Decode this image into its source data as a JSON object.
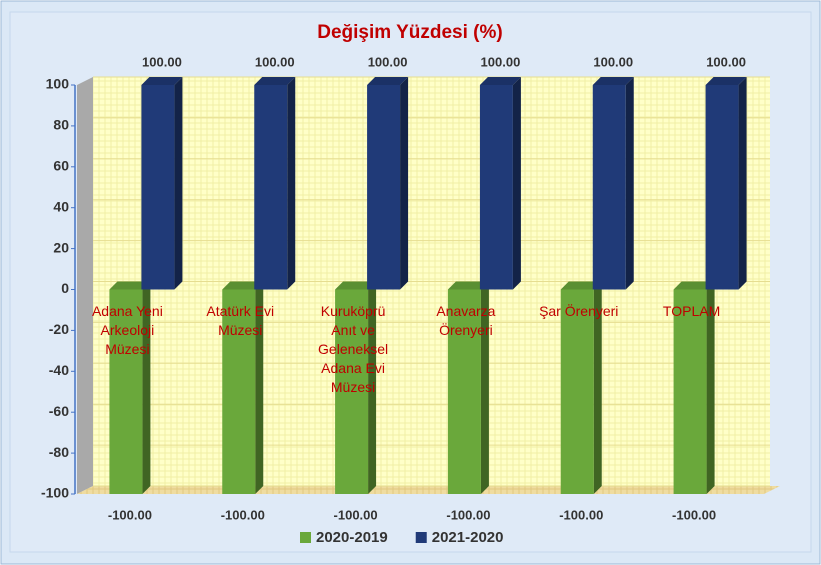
{
  "chart_data": {
    "type": "bar",
    "title": "Değişim Yüzdesi (%)",
    "categories": [
      "Adana Yeni Arkeoloji Müzesi",
      "Atatürk Evi Müzesi",
      "Kuruköprü Anıt ve Geleneksel Adana Evi Müzesi",
      "Anavarza Örenyeri",
      "Şar Örenyeri",
      "TOPLAM"
    ],
    "series": [
      {
        "name": "2020-2019",
        "color": "#6aa83b",
        "values": [
          -100,
          -100,
          -100,
          -100,
          -100,
          -100
        ],
        "value_labels": [
          "-100.00",
          "-100.00",
          "-100.00",
          "-100.00",
          "-100.00",
          "-100.00"
        ]
      },
      {
        "name": "2021-2020",
        "color": "#203a78",
        "values": [
          100,
          100,
          100,
          100,
          100,
          100
        ],
        "value_labels": [
          "100.00",
          "100.00",
          "100.00",
          "100.00",
          "100.00",
          "100.00"
        ]
      }
    ],
    "ylim": [
      -100,
      100
    ],
    "yticks": [
      -100,
      -80,
      -60,
      -40,
      -20,
      0,
      20,
      40,
      60,
      80,
      100
    ],
    "grid": true,
    "legend": "bottom"
  }
}
